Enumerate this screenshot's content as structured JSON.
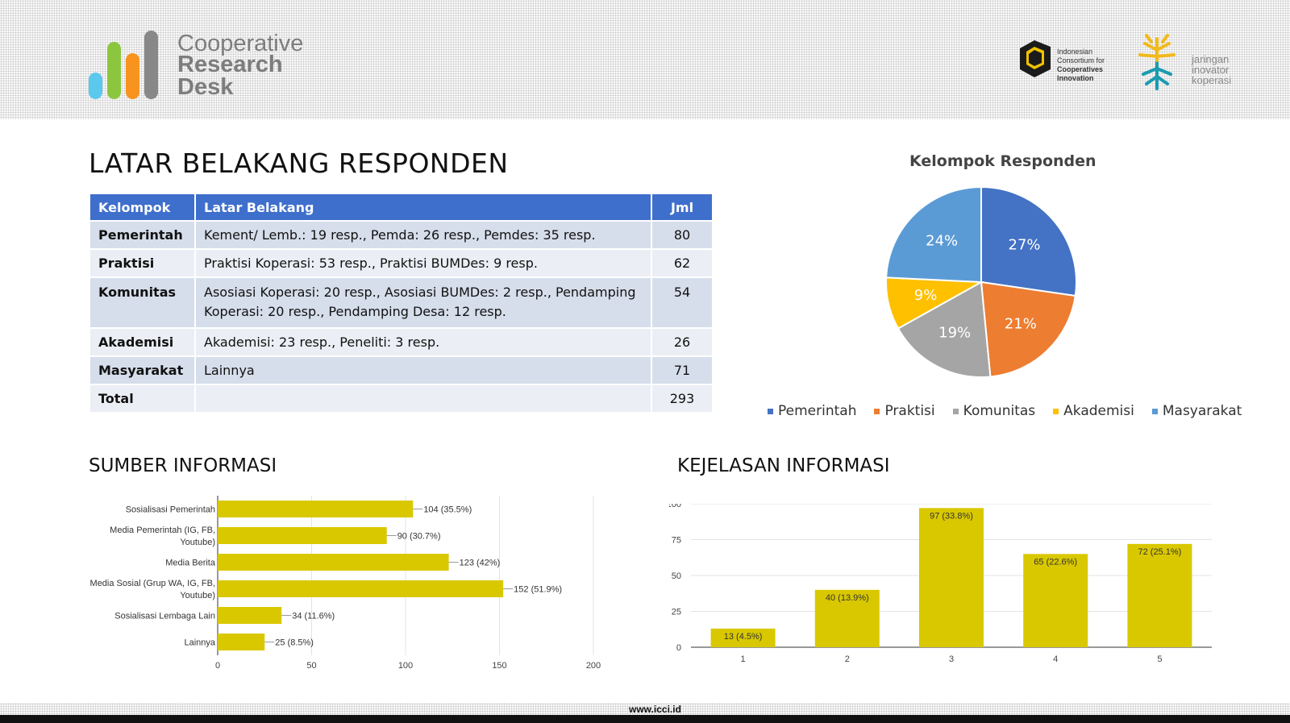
{
  "brand": {
    "line1": "Cooperative",
    "line2": "Research",
    "line3": "Desk",
    "bar_colors": [
      "#5bc8ee",
      "#8cc63f",
      "#f7931e",
      "#888888"
    ]
  },
  "partner_logos": {
    "icci": {
      "line1": "Indonesian",
      "line2": "Consortium for",
      "line3": "Cooperatives",
      "line4": "Innovation"
    },
    "jik": {
      "line1": "jaringan",
      "line2": "inovator",
      "line3": "koperasi"
    }
  },
  "page_title": "LATAR BELAKANG RESPONDEN",
  "table": {
    "headers": [
      "Kelompok",
      "Latar Belakang",
      "Jml"
    ],
    "rows": [
      {
        "group": "Pemerintah",
        "background": "Kement/ Lemb.: 19 resp., Pemda: 26 resp., Pemdes: 35 resp.",
        "count": "80"
      },
      {
        "group": "Praktisi",
        "background": "Praktisi Koperasi: 53 resp., Praktisi BUMDes: 9 resp.",
        "count": "62"
      },
      {
        "group": "Komunitas",
        "background": "Asosiasi Koperasi: 20 resp., Asosiasi BUMDes: 2 resp., Pendamping Koperasi: 20 resp., Pendamping Desa: 12 resp.",
        "count": "54"
      },
      {
        "group": "Akademisi",
        "background": "Akademisi: 23 resp., Peneliti: 3 resp.",
        "count": "26"
      },
      {
        "group": "Masyarakat",
        "background": "Lainnya",
        "count": "71"
      },
      {
        "group": "Total",
        "background": "",
        "count": "293"
      }
    ]
  },
  "sections": {
    "sumber": "SUMBER INFORMASI",
    "kejelasan": "KEJELASAN INFORMASI"
  },
  "footer": {
    "url": "www.icci.id"
  },
  "chart_data": [
    {
      "type": "pie",
      "title": "Kelompok Responden",
      "categories": [
        "Pemerintah",
        "Praktisi",
        "Komunitas",
        "Akademisi",
        "Masyarakat"
      ],
      "values": [
        80,
        62,
        54,
        26,
        71
      ],
      "labels": [
        "27%",
        "21%",
        "19%",
        "9%",
        "24%"
      ],
      "colors": [
        "#4472c4",
        "#ed7d31",
        "#a5a5a5",
        "#ffc000",
        "#5b9bd5"
      ],
      "legend": "bottom"
    },
    {
      "type": "bar",
      "orientation": "horizontal",
      "categories": [
        "Sosialisasi Pemerintah",
        "Media Pemerintah (IG, FB, Youtube)",
        "Media Berita",
        "Media Sosial (Grup WA, IG, FB, Youtube)",
        "Sosialisasi Lembaga Lain",
        "Lainnya"
      ],
      "category_lines": [
        [
          "Sosialisasi Pemerintah"
        ],
        [
          "Media Pemerintah (IG, FB,",
          "Youtube)"
        ],
        [
          "Media Berita"
        ],
        [
          "Media Sosial (Grup WA, IG, FB,",
          "Youtube)"
        ],
        [
          "Sosialisasi Lembaga Lain"
        ],
        [
          "Lainnya"
        ]
      ],
      "values": [
        104,
        90,
        123,
        152,
        34,
        25
      ],
      "labels": [
        "104 (35.5%)",
        "90 (30.7%)",
        "123 (42%)",
        "152 (51.9%)",
        "34 (11.6%)",
        "25 (8.5%)"
      ],
      "xlim": [
        0,
        200
      ],
      "xticks": [
        0,
        50,
        100,
        150,
        200
      ],
      "color": "#d9c800",
      "grid": true
    },
    {
      "type": "bar",
      "orientation": "vertical",
      "categories": [
        "1",
        "2",
        "3",
        "4",
        "5"
      ],
      "values": [
        13,
        40,
        97,
        65,
        72
      ],
      "labels": [
        "13 (4.5%)",
        "40 (13.9%)",
        "97 (33.8%)",
        "65 (22.6%)",
        "72 (25.1%)"
      ],
      "ylim": [
        0,
        100
      ],
      "yticks": [
        0,
        25,
        50,
        75,
        100
      ],
      "color": "#d9c800",
      "grid": true
    }
  ]
}
